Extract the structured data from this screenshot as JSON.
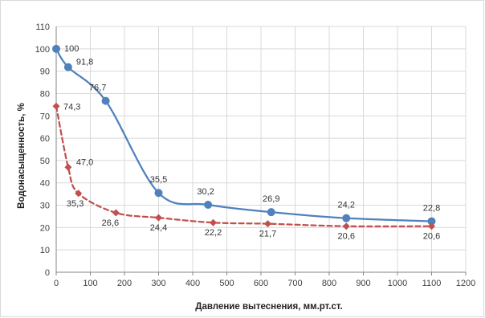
{
  "chart_data": {
    "type": "line",
    "xlabel": "Давление вытеснения, мм.рт.ст.",
    "ylabel": "Водонасыщенность, %",
    "xlim": [
      0,
      1200
    ],
    "ylim": [
      0,
      110
    ],
    "xticks": [
      0,
      100,
      200,
      300,
      400,
      500,
      600,
      700,
      800,
      900,
      1000,
      1100,
      1200
    ],
    "yticks": [
      0,
      10,
      20,
      30,
      40,
      50,
      60,
      70,
      80,
      90,
      100,
      110
    ],
    "grid": true,
    "legend": "none",
    "series": [
      {
        "color": "#4f81bd",
        "style": "solid-smooth",
        "marker": "circle",
        "points": [
          {
            "x": 0,
            "y": 100,
            "label": "100"
          },
          {
            "x": 35,
            "y": 91.8,
            "label": "91,8"
          },
          {
            "x": 145,
            "y": 76.7,
            "label": "76,7"
          },
          {
            "x": 300,
            "y": 35.5,
            "label": "35,5"
          },
          {
            "x": 445,
            "y": 30.2,
            "label": "30,2"
          },
          {
            "x": 630,
            "y": 26.9,
            "label": "26,9"
          },
          {
            "x": 850,
            "y": 24.2,
            "label": "24,2"
          },
          {
            "x": 1100,
            "y": 22.8,
            "label": "22,8"
          }
        ]
      },
      {
        "color": "#c0504d",
        "style": "dashed-smooth",
        "marker": "diamond",
        "points": [
          {
            "x": 0,
            "y": 74.3,
            "label": "74,3"
          },
          {
            "x": 35,
            "y": 47.0,
            "label": "47,0"
          },
          {
            "x": 65,
            "y": 35.3,
            "label": "35,3"
          },
          {
            "x": 175,
            "y": 26.6,
            "label": "26,6"
          },
          {
            "x": 300,
            "y": 24.4,
            "label": "24,4"
          },
          {
            "x": 460,
            "y": 22.2,
            "label": "22,2"
          },
          {
            "x": 620,
            "y": 21.7,
            "label": "21,7"
          },
          {
            "x": 850,
            "y": 20.6,
            "label": "20,6"
          },
          {
            "x": 1100,
            "y": 20.6,
            "label": "20,6"
          }
        ]
      }
    ]
  }
}
